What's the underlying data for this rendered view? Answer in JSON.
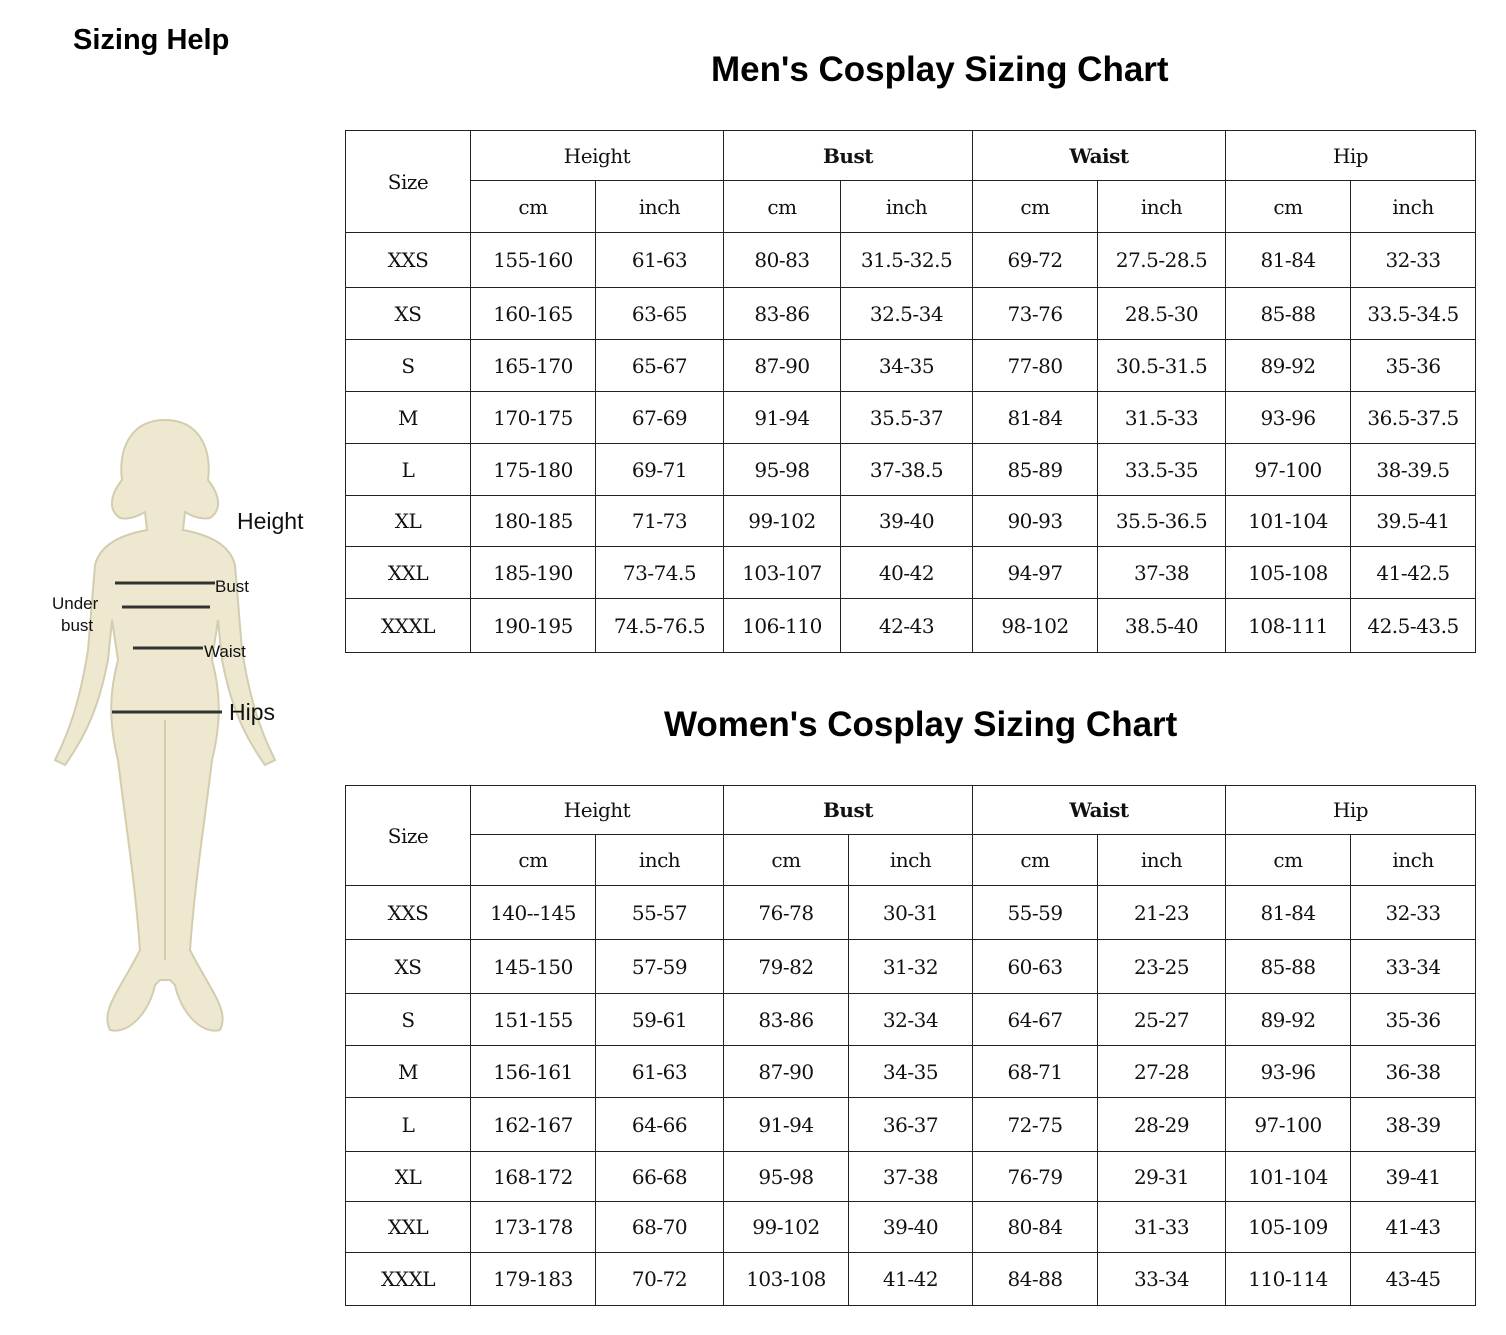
{
  "page_title": "Sizing Help",
  "figure": {
    "labels": {
      "height": "Height",
      "bust": "Bust",
      "under_bust_1": "Under",
      "under_bust_2": "bust",
      "waist": "Waist",
      "hips": "Hips"
    },
    "fill_color": "#ede8cf"
  },
  "men": {
    "title": "Men's Cosplay Sizing Chart",
    "headers": {
      "size": "Size",
      "groups": [
        "Height",
        "Bust",
        "Waist",
        "Hip"
      ],
      "units": [
        "cm",
        "inch",
        "cm",
        "inch",
        "cm",
        "inch",
        "cm",
        "inch"
      ]
    },
    "rows": [
      [
        "XXS",
        "155-160",
        "61-63",
        "80-83",
        "31.5-32.5",
        "69-72",
        "27.5-28.5",
        "81-84",
        "32-33"
      ],
      [
        "XS",
        "160-165",
        "63-65",
        "83-86",
        "32.5-34",
        "73-76",
        "28.5-30",
        "85-88",
        "33.5-34.5"
      ],
      [
        "S",
        "165-170",
        "65-67",
        "87-90",
        "34-35",
        "77-80",
        "30.5-31.5",
        "89-92",
        "35-36"
      ],
      [
        "M",
        "170-175",
        "67-69",
        "91-94",
        "35.5-37",
        "81-84",
        "31.5-33",
        "93-96",
        "36.5-37.5"
      ],
      [
        "L",
        "175-180",
        "69-71",
        "95-98",
        "37-38.5",
        "85-89",
        "33.5-35",
        "97-100",
        "38-39.5"
      ],
      [
        "XL",
        "180-185",
        "71-73",
        "99-102",
        "39-40",
        "90-93",
        "35.5-36.5",
        "101-104",
        "39.5-41"
      ],
      [
        "XXL",
        "185-190",
        "73-74.5",
        "103-107",
        "40-42",
        "94-97",
        "37-38",
        "105-108",
        "41-42.5"
      ],
      [
        "XXXL",
        "190-195",
        "74.5-76.5",
        "106-110",
        "42-43",
        "98-102",
        "38.5-40",
        "108-111",
        "42.5-43.5"
      ]
    ]
  },
  "women": {
    "title": "Women's Cosplay Sizing Chart",
    "headers": {
      "size": "Size",
      "groups": [
        "Height",
        "Bust",
        "Waist",
        "Hip"
      ],
      "units": [
        "cm",
        "inch",
        "cm",
        "inch",
        "cm",
        "inch",
        "cm",
        "inch"
      ]
    },
    "rows": [
      [
        "XXS",
        "140--145",
        "55-57",
        "76-78",
        "30-31",
        "55-59",
        "21-23",
        "81-84",
        "32-33"
      ],
      [
        "XS",
        "145-150",
        "57-59",
        "79-82",
        "31-32",
        "60-63",
        "23-25",
        "85-88",
        "33-34"
      ],
      [
        "S",
        "151-155",
        "59-61",
        "83-86",
        "32-34",
        "64-67",
        "25-27",
        "89-92",
        "35-36"
      ],
      [
        "M",
        "156-161",
        "61-63",
        "87-90",
        "34-35",
        "68-71",
        "27-28",
        "93-96",
        "36-38"
      ],
      [
        "L",
        "162-167",
        "64-66",
        "91-94",
        "36-37",
        "72-75",
        "28-29",
        "97-100",
        "38-39"
      ],
      [
        "XL",
        "168-172",
        "66-68",
        "95-98",
        "37-38",
        "76-79",
        "29-31",
        "101-104",
        "39-41"
      ],
      [
        "XXL",
        "173-178",
        "68-70",
        "99-102",
        "39-40",
        "80-84",
        "31-33",
        "105-109",
        "41-43"
      ],
      [
        "XXXL",
        "179-183",
        "70-72",
        "103-108",
        "41-42",
        "84-88",
        "33-34",
        "110-114",
        "43-45"
      ]
    ]
  }
}
